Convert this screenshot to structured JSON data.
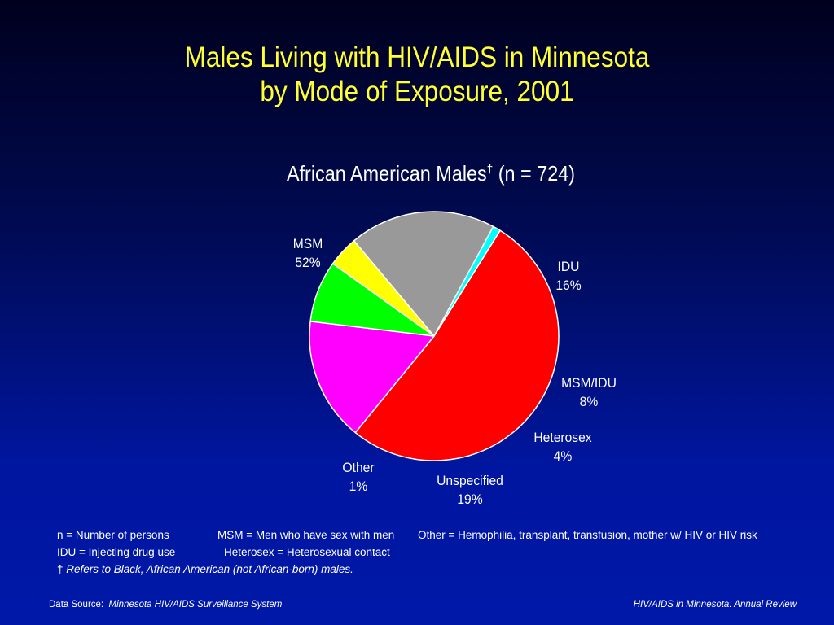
{
  "slide": {
    "title_line1": "Males Living with HIV/AIDS in Minnesota",
    "title_line2": "by Mode of Exposure, 2001",
    "subtitle_main": "African American Males",
    "subtitle_dagger": "†",
    "subtitle_n": " (n = 724)"
  },
  "chart_data": {
    "type": "pie",
    "title": "African American Males† (n = 724)",
    "slices": [
      {
        "label": "MSM",
        "pct_label": "52%",
        "value": 52,
        "color": "#ff0000"
      },
      {
        "label": "IDU",
        "pct_label": "16%",
        "value": 16,
        "color": "#ff00ff"
      },
      {
        "label": "MSM/IDU",
        "pct_label": "8%",
        "value": 8,
        "color": "#00ff00"
      },
      {
        "label": "Heterosex",
        "pct_label": "4%",
        "value": 4,
        "color": "#ffff00"
      },
      {
        "label": "Unspecified",
        "pct_label": "19%",
        "value": 19,
        "color": "#999999"
      },
      {
        "label": "Other",
        "pct_label": "1%",
        "value": 1,
        "color": "#00ffff"
      }
    ]
  },
  "notes": {
    "row1": {
      "col1": "n = Number of persons",
      "col2": "MSM = Men who have sex with men",
      "col3": "Other = Hemophilia, transplant, transfusion, mother w/ HIV or HIV risk"
    },
    "row2": {
      "col1": "IDU = Injecting drug use",
      "col2": "Heterosex = Heterosexual contact"
    },
    "row3": {
      "dagger": "†",
      "text": " Refers to Black, African American (not African-born) males."
    }
  },
  "footer": {
    "source_label": "Data Source:",
    "source_value": "Minnesota HIV/AIDS Surveillance System",
    "right": "HIV/AIDS in Minnesota: Annual Review"
  }
}
